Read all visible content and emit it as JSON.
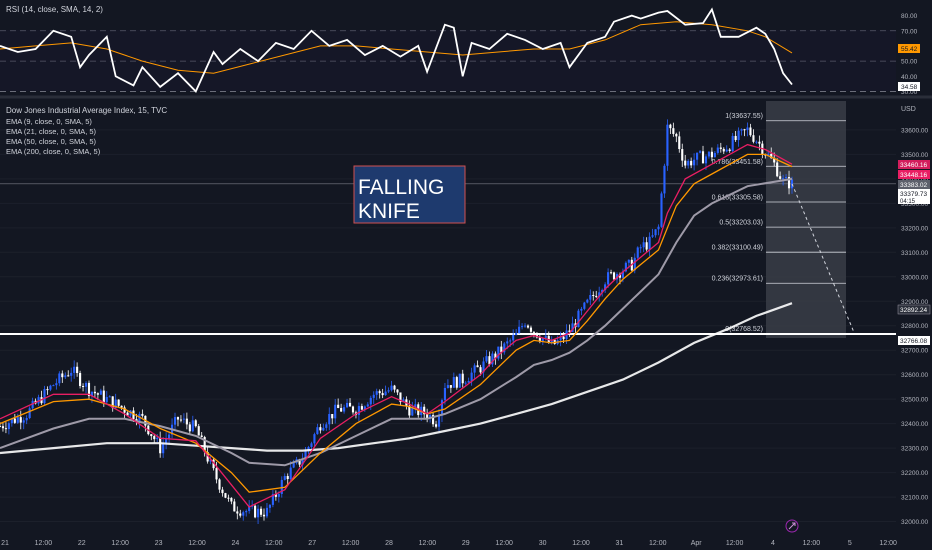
{
  "rsi_panel": {
    "legend": "RSI (14, close, SMA, 14, 2)",
    "axis_labels": [
      "80.00",
      "70.00",
      "60.00",
      "50.00",
      "40.00",
      "30.00"
    ],
    "current_value": "34.58",
    "sma_value": "55.42"
  },
  "main_panel": {
    "legend": {
      "symbol": "Dow Jones Industrial Average Index, 15, TVC",
      "indicators": [
        "EMA (9, close, 0, SMA, 5)",
        "EMA (21, close, 0, SMA, 5)",
        "EMA (50, close, 0, SMA, 5)",
        "EMA (200, close, 0, SMA, 5)"
      ]
    },
    "currency": "USD",
    "annotation": {
      "line1": "FALLING",
      "line2": "KNIFE"
    },
    "price_badges": {
      "ema9": "33460.16",
      "ema21": "33448.16",
      "last": "33383.02",
      "price": "33379.73",
      "countdown": "04:15",
      "ema200": "32892.24",
      "support": "32766.08"
    },
    "time_labels": [
      "21",
      "12:00",
      "22",
      "12:00",
      "23",
      "12:00",
      "24",
      "12:00",
      "27",
      "12:00",
      "28",
      "12:00",
      "29",
      "12:00",
      "30",
      "12:00",
      "31",
      "12:00",
      "Apr",
      "12:00",
      "4",
      "12:00",
      "5",
      "12:00"
    ]
  },
  "colors": {
    "background": "#131722",
    "up_candle": "#2962ff",
    "down_candle": "#ffffff",
    "ema9": "#e91e63",
    "ema21": "#ff9800",
    "ema50": "#9e9aa8",
    "ema200": "#ffffff",
    "rsi": "#ffffff",
    "rsi_sma": "#ff9800",
    "annotation_bg": "#1e3a6e",
    "annotation_border": "#d05050"
  },
  "chart_data": {
    "type": "candlestick",
    "title": "Dow Jones Industrial Average Index, 15, TVC",
    "y_unit": "USD",
    "ylim": [
      31990,
      33710
    ],
    "y_ticks": [
      33600,
      33500,
      33400,
      33300,
      33200,
      33100,
      33000,
      32900,
      32800,
      32700,
      32600,
      32500,
      32400,
      32300,
      32200,
      32100,
      32000
    ],
    "price_path": [
      [
        0,
        32390
      ],
      [
        3,
        32440
      ],
      [
        6,
        32560
      ],
      [
        8,
        32620
      ],
      [
        10,
        32540
      ],
      [
        13,
        32480
      ],
      [
        16,
        32420
      ],
      [
        18,
        32300
      ],
      [
        20,
        32420
      ],
      [
        22,
        32380
      ],
      [
        24,
        32200
      ],
      [
        26,
        32060
      ],
      [
        28,
        32040
      ],
      [
        30,
        32040
      ],
      [
        32,
        32180
      ],
      [
        34,
        32260
      ],
      [
        36,
        32400
      ],
      [
        38,
        32460
      ],
      [
        40,
        32460
      ],
      [
        42,
        32520
      ],
      [
        44,
        32540
      ],
      [
        46,
        32460
      ],
      [
        48,
        32440
      ],
      [
        49,
        32410
      ],
      [
        50,
        32560
      ],
      [
        52,
        32580
      ],
      [
        54,
        32630
      ],
      [
        56,
        32690
      ],
      [
        58,
        32760
      ],
      [
        59,
        32820
      ],
      [
        60,
        32780
      ],
      [
        62,
        32720
      ],
      [
        63,
        32740
      ],
      [
        64,
        32780
      ],
      [
        66,
        32890
      ],
      [
        68,
        32990
      ],
      [
        70,
        33030
      ],
      [
        71,
        33050
      ],
      [
        72,
        33120
      ],
      [
        73,
        33140
      ],
      [
        74,
        33200
      ],
      [
        75,
        33610
      ],
      [
        76,
        33570
      ],
      [
        77,
        33460
      ],
      [
        78,
        33480
      ],
      [
        80,
        33500
      ],
      [
        82,
        33540
      ],
      [
        84,
        33600
      ],
      [
        85,
        33560
      ],
      [
        86,
        33510
      ],
      [
        87,
        33460
      ],
      [
        88,
        33390
      ],
      [
        89,
        33380
      ]
    ],
    "ema9_path": [
      [
        0,
        32420
      ],
      [
        6,
        32520
      ],
      [
        10,
        32520
      ],
      [
        14,
        32440
      ],
      [
        18,
        32340
      ],
      [
        22,
        32330
      ],
      [
        26,
        32150
      ],
      [
        28,
        32060
      ],
      [
        32,
        32130
      ],
      [
        36,
        32340
      ],
      [
        40,
        32440
      ],
      [
        44,
        32510
      ],
      [
        46,
        32480
      ],
      [
        48,
        32440
      ],
      [
        50,
        32490
      ],
      [
        54,
        32600
      ],
      [
        56,
        32680
      ],
      [
        58,
        32740
      ],
      [
        60,
        32760
      ],
      [
        62,
        32740
      ],
      [
        64,
        32770
      ],
      [
        66,
        32860
      ],
      [
        68,
        32950
      ],
      [
        70,
        33020
      ],
      [
        72,
        33080
      ],
      [
        74,
        33140
      ],
      [
        75,
        33260
      ],
      [
        77,
        33400
      ],
      [
        80,
        33460
      ],
      [
        84,
        33540
      ],
      [
        86,
        33520
      ],
      [
        89,
        33460
      ]
    ],
    "ema21_path": [
      [
        0,
        32400
      ],
      [
        6,
        32490
      ],
      [
        10,
        32500
      ],
      [
        14,
        32460
      ],
      [
        18,
        32380
      ],
      [
        22,
        32320
      ],
      [
        26,
        32200
      ],
      [
        28,
        32120
      ],
      [
        32,
        32140
      ],
      [
        36,
        32280
      ],
      [
        40,
        32400
      ],
      [
        44,
        32480
      ],
      [
        46,
        32470
      ],
      [
        48,
        32440
      ],
      [
        50,
        32460
      ],
      [
        54,
        32560
      ],
      [
        56,
        32630
      ],
      [
        58,
        32700
      ],
      [
        60,
        32740
      ],
      [
        62,
        32730
      ],
      [
        64,
        32740
      ],
      [
        66,
        32820
      ],
      [
        68,
        32910
      ],
      [
        70,
        32990
      ],
      [
        72,
        33050
      ],
      [
        74,
        33110
      ],
      [
        76,
        33290
      ],
      [
        78,
        33380
      ],
      [
        80,
        33420
      ],
      [
        84,
        33500
      ],
      [
        86,
        33500
      ],
      [
        89,
        33450
      ]
    ],
    "ema50_path": [
      [
        0,
        32300
      ],
      [
        6,
        32380
      ],
      [
        10,
        32420
      ],
      [
        14,
        32420
      ],
      [
        18,
        32390
      ],
      [
        22,
        32350
      ],
      [
        26,
        32280
      ],
      [
        28,
        32240
      ],
      [
        32,
        32230
      ],
      [
        36,
        32280
      ],
      [
        40,
        32350
      ],
      [
        44,
        32420
      ],
      [
        48,
        32420
      ],
      [
        50,
        32440
      ],
      [
        54,
        32500
      ],
      [
        58,
        32590
      ],
      [
        60,
        32640
      ],
      [
        62,
        32660
      ],
      [
        64,
        32690
      ],
      [
        66,
        32740
      ],
      [
        68,
        32800
      ],
      [
        70,
        32870
      ],
      [
        72,
        32940
      ],
      [
        74,
        33010
      ],
      [
        76,
        33140
      ],
      [
        78,
        33250
      ],
      [
        80,
        33300
      ],
      [
        84,
        33370
      ],
      [
        89,
        33400
      ]
    ],
    "ema200_path": [
      [
        0,
        32280
      ],
      [
        6,
        32300
      ],
      [
        12,
        32320
      ],
      [
        18,
        32320
      ],
      [
        22,
        32310
      ],
      [
        26,
        32300
      ],
      [
        30,
        32290
      ],
      [
        34,
        32290
      ],
      [
        38,
        32300
      ],
      [
        42,
        32320
      ],
      [
        46,
        32340
      ],
      [
        50,
        32370
      ],
      [
        54,
        32400
      ],
      [
        58,
        32440
      ],
      [
        62,
        32480
      ],
      [
        66,
        32530
      ],
      [
        70,
        32580
      ],
      [
        74,
        32650
      ],
      [
        78,
        32730
      ],
      [
        82,
        32790
      ],
      [
        85,
        32840
      ],
      [
        89,
        32892
      ]
    ],
    "ema_names": [
      "EMA (9, close, 0, SMA, 5)",
      "EMA (21, close, 0, SMA, 5)",
      "EMA (50, close, 0, SMA, 5)",
      "EMA (200, close, 0, SMA, 5)"
    ],
    "rsi": {
      "ylim": [
        27,
        85
      ],
      "levels": [
        70,
        50,
        30
      ],
      "path": [
        [
          0,
          60
        ],
        [
          2,
          56
        ],
        [
          4,
          58
        ],
        [
          6,
          70
        ],
        [
          8,
          66
        ],
        [
          9,
          46
        ],
        [
          10,
          54
        ],
        [
          12,
          66
        ],
        [
          13,
          40
        ],
        [
          15,
          34
        ],
        [
          16,
          46
        ],
        [
          18,
          33
        ],
        [
          20,
          42
        ],
        [
          22,
          30
        ],
        [
          24,
          56
        ],
        [
          25,
          48
        ],
        [
          27,
          58
        ],
        [
          29,
          50
        ],
        [
          31,
          62
        ],
        [
          33,
          58
        ],
        [
          35,
          70
        ],
        [
          37,
          60
        ],
        [
          39,
          64
        ],
        [
          41,
          54
        ],
        [
          43,
          60
        ],
        [
          45,
          53
        ],
        [
          47,
          60
        ],
        [
          48,
          43
        ],
        [
          50,
          74
        ],
        [
          51,
          72
        ],
        [
          52,
          40
        ],
        [
          53,
          62
        ],
        [
          55,
          58
        ],
        [
          57,
          68
        ],
        [
          59,
          64
        ],
        [
          61,
          58
        ],
        [
          63,
          62
        ],
        [
          64,
          46
        ],
        [
          66,
          62
        ],
        [
          68,
          66
        ],
        [
          69,
          76
        ],
        [
          71,
          80
        ],
        [
          72,
          78
        ],
        [
          74,
          82
        ],
        [
          75,
          83
        ],
        [
          77,
          74
        ],
        [
          79,
          75
        ],
        [
          80,
          84
        ],
        [
          81,
          66
        ],
        [
          83,
          66
        ],
        [
          85,
          72
        ],
        [
          86,
          68
        ],
        [
          87,
          58
        ],
        [
          88,
          42
        ],
        [
          89,
          34.58
        ]
      ],
      "sma_path": [
        [
          0,
          58
        ],
        [
          4,
          60
        ],
        [
          8,
          62
        ],
        [
          12,
          58
        ],
        [
          16,
          50
        ],
        [
          20,
          44
        ],
        [
          24,
          42
        ],
        [
          28,
          48
        ],
        [
          32,
          54
        ],
        [
          36,
          60
        ],
        [
          40,
          60
        ],
        [
          44,
          58
        ],
        [
          48,
          56
        ],
        [
          52,
          54
        ],
        [
          56,
          56
        ],
        [
          60,
          58
        ],
        [
          64,
          58
        ],
        [
          68,
          64
        ],
        [
          72,
          74
        ],
        [
          76,
          76
        ],
        [
          80,
          74
        ],
        [
          84,
          70
        ],
        [
          86,
          66
        ],
        [
          89,
          55.42
        ]
      ]
    },
    "fibonacci": {
      "levels": [
        {
          "ratio": "1",
          "value": "33637.55",
          "price": 33637.55
        },
        {
          "ratio": "0.786",
          "value": "33451.58",
          "price": 33451.58
        },
        {
          "ratio": "0.618",
          "value": "33305.58",
          "price": 33305.58
        },
        {
          "ratio": "0.5",
          "value": "33203.03",
          "price": 33203.03
        },
        {
          "ratio": "0.382",
          "value": "33100.49",
          "price": 33100.49
        },
        {
          "ratio": "0.236",
          "value": "32973.61",
          "price": 32973.61
        },
        {
          "ratio": "0",
          "value": "32768.52",
          "price": 32768.52
        }
      ]
    },
    "support_level": 32766.08,
    "current_price": 33379.73,
    "projection": {
      "from": [
        89,
        33380
      ],
      "to": [
        96,
        32770
      ]
    }
  }
}
